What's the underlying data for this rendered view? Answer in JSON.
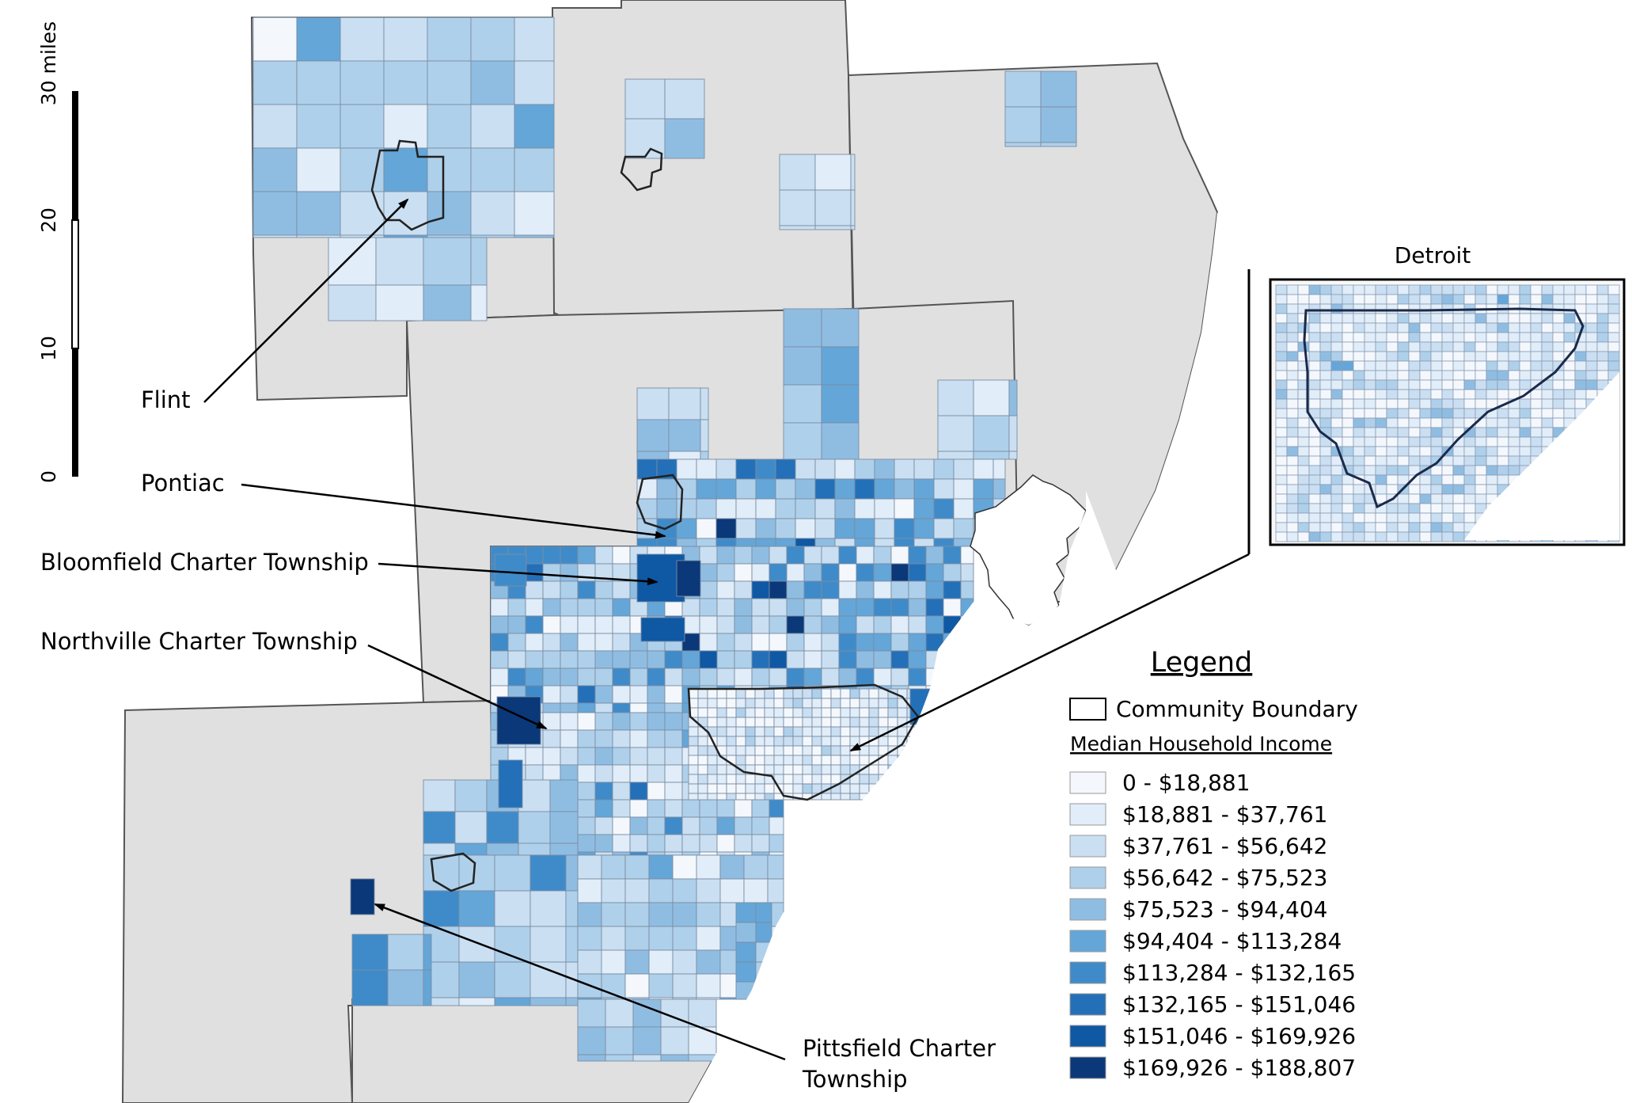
{
  "annotations": {
    "flint": "Flint",
    "pontiac": "Pontiac",
    "bloomfield": "Bloomfield Charter Township",
    "northville": "Northville Charter Township",
    "pittsfield_line1": "Pittsfield Charter",
    "pittsfield_line2": "Township"
  },
  "inset": {
    "title": "Detroit"
  },
  "scalebar": {
    "unit_label": "30 miles",
    "ticks": [
      "0",
      "10",
      "20"
    ]
  },
  "legend": {
    "title": "Legend",
    "boundary_label": "Community Boundary",
    "subtitle": "Median Household Income",
    "classes": [
      {
        "label": "0 - $18,881",
        "color": "#f4f8fd"
      },
      {
        "label": "$18,881 - $37,761",
        "color": "#e1edf8"
      },
      {
        "label": "$37,761 - $56,642",
        "color": "#cadff2"
      },
      {
        "label": "$56,642 - $75,523",
        "color": "#afd0ea"
      },
      {
        "label": "$75,523 - $94,404",
        "color": "#8fbde2"
      },
      {
        "label": "$94,404 - $113,284",
        "color": "#64a6d8"
      },
      {
        "label": "$113,284 - $132,165",
        "color": "#3f8bc9"
      },
      {
        "label": "$132,165 - $151,046",
        "color": "#2470b8"
      },
      {
        "label": "$151,046 - $169,926",
        "color": "#0f58a4"
      },
      {
        "label": "$169,926 - $188,807",
        "color": "#0b3878"
      }
    ]
  },
  "colors": {
    "county_fill": "#e0e0e0",
    "outline": "#555555",
    "boundary": "#222222"
  }
}
